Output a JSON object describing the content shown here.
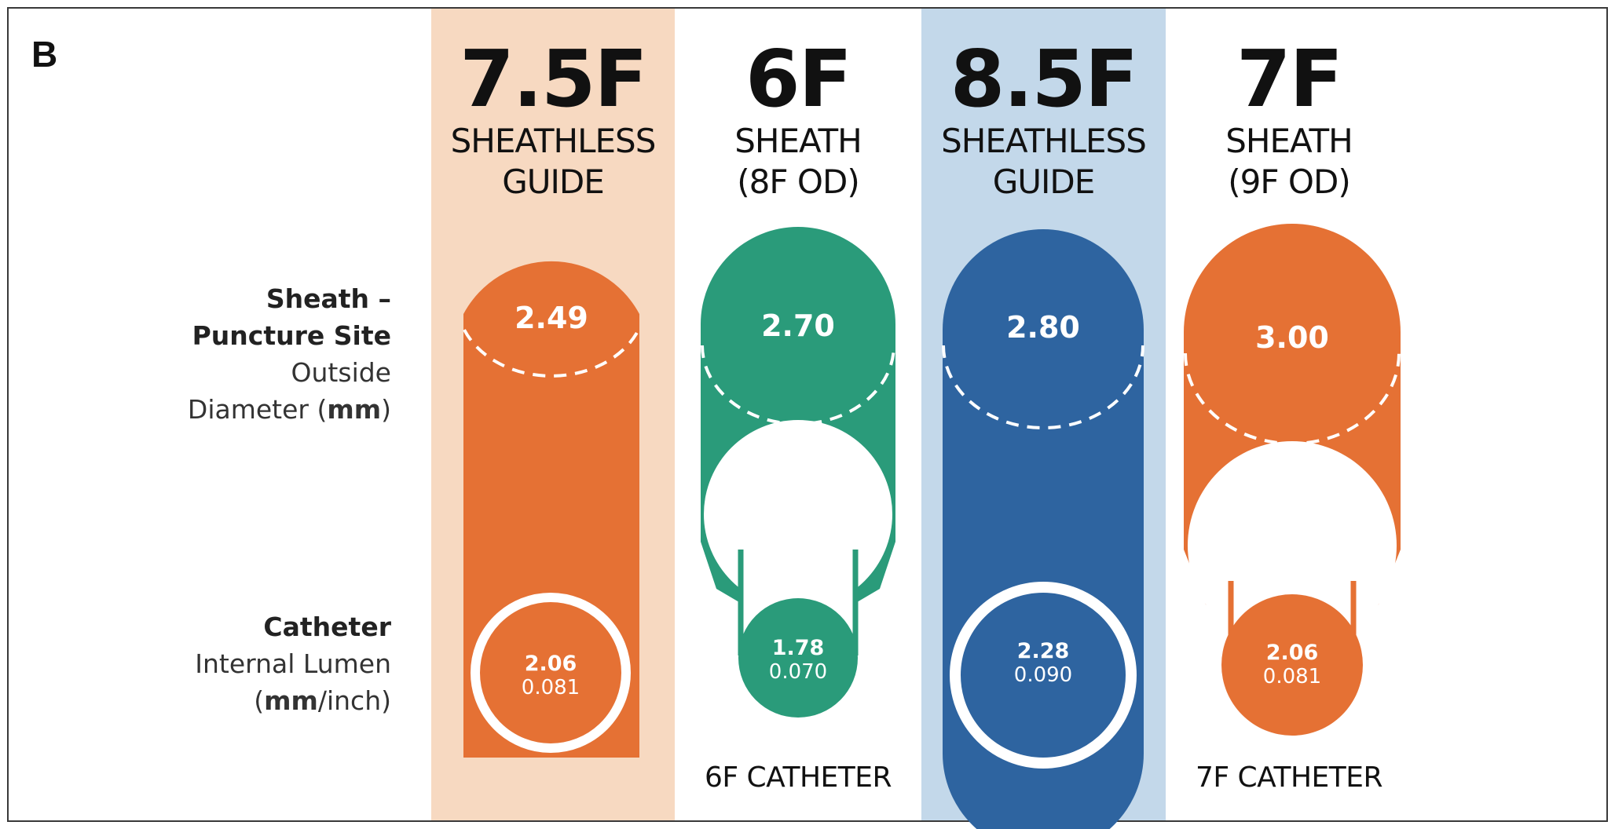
{
  "panel_label": "B",
  "row_labels": {
    "sheath": {
      "bold_line1": "Sheath –",
      "bold_line2": "Puncture Site",
      "line3": "Outside",
      "line4_pre": "Diameter (",
      "line4_bold": "mm",
      "line4_post": ")"
    },
    "catheter": {
      "bold_line1": "Catheter",
      "line2": "Internal Lumen",
      "line3_pre": "(",
      "line3_bold": "mm",
      "line3_post": "/inch)"
    }
  },
  "columns": [
    {
      "size": "7.5F",
      "type_line1": "SHEATHLESS",
      "type_line2": "GUIDE",
      "outer_diameter": "2.49",
      "lumen_mm": "2.06",
      "lumen_inch": "0.081",
      "footer": "",
      "color": "#e57134",
      "background": "#f7d9c1"
    },
    {
      "size": "6F",
      "type_line1": "SHEATH",
      "type_line2": "(8F OD)",
      "outer_diameter": "2.70",
      "lumen_mm": "1.78",
      "lumen_inch": "0.070",
      "footer": "6F CATHETER",
      "color": "#2a9b7a",
      "background": "#ffffff"
    },
    {
      "size": "8.5F",
      "type_line1": "SHEATHLESS",
      "type_line2": "GUIDE",
      "outer_diameter": "2.80",
      "lumen_mm": "2.28",
      "lumen_inch": "0.090",
      "footer": "",
      "color": "#2e64a0",
      "background": "#c3d8ea"
    },
    {
      "size": "7F",
      "type_line1": "SHEATH",
      "type_line2": "(9F OD)",
      "outer_diameter": "3.00",
      "lumen_mm": "2.06",
      "lumen_inch": "0.081",
      "footer": "7F CATHETER",
      "color": "#e57134",
      "background": "#ffffff"
    }
  ]
}
